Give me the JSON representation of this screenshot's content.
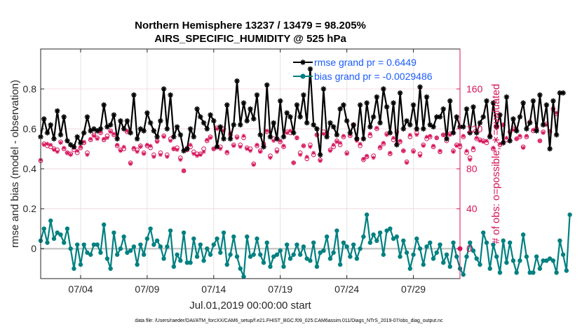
{
  "chart_data": {
    "type": "line",
    "title_line1": "Northern Hemisphere 13237 / 13479 = 98.205%",
    "title_line2": "AIRS_SPECIFIC_HUMIDITY @ 525 hPa",
    "ylabel_left": "rmse and bias (model - observation)",
    "ylabel_right": "# of obs: o=possible; ∗=evaluated",
    "xlabel": "Jul.01,2019 00:00:00 start",
    "footnote": "data file: /Users/raeder/DAI/ATM_forcXX/CAM6_setup/f.e21.FHIST_BGC.f09_025.CAM6assim.011/Diags_NTrS_2019-07/obs_diag_output.nc",
    "xlim": [
      1.0,
      32.5
    ],
    "ylim_left": [
      -0.15,
      1.0
    ],
    "ylim_right": [
      -30,
      200
    ],
    "x_ticks": [
      {
        "value": 4,
        "label": "07/04"
      },
      {
        "value": 9,
        "label": "07/09"
      },
      {
        "value": 14,
        "label": "07/14"
      },
      {
        "value": 19,
        "label": "07/19"
      },
      {
        "value": 24,
        "label": "07/24"
      },
      {
        "value": 29,
        "label": "07/29"
      }
    ],
    "y_ticks_left": [
      {
        "value": 0,
        "label": "0"
      },
      {
        "value": 0.2,
        "label": "0.2"
      },
      {
        "value": 0.4,
        "label": "0.4"
      },
      {
        "value": 0.6,
        "label": "0.6"
      },
      {
        "value": 0.8,
        "label": "0.8"
      }
    ],
    "y_ticks_right": [
      {
        "value": 0,
        "label": "0"
      },
      {
        "value": 40,
        "label": "40"
      },
      {
        "value": 80,
        "label": "80"
      },
      {
        "value": 120,
        "label": "120"
      },
      {
        "value": 160,
        "label": "160"
      }
    ],
    "grid": true,
    "legend_position": "top-right",
    "series": [
      {
        "name": "rmse grand pr = 0.6449",
        "color": "#000000",
        "marker": "asterisk",
        "x_start": 1.0,
        "x_step": 0.25,
        "values": [
          0.56,
          0.65,
          0.58,
          0.62,
          0.55,
          0.69,
          0.57,
          0.66,
          0.54,
          0.52,
          0.51,
          0.56,
          0.53,
          0.58,
          0.66,
          0.59,
          0.6,
          0.59,
          0.6,
          0.72,
          0.61,
          0.62,
          0.67,
          0.55,
          0.64,
          0.6,
          0.64,
          0.58,
          0.77,
          0.55,
          0.6,
          0.59,
          0.68,
          0.63,
          0.59,
          0.56,
          0.64,
          0.8,
          0.6,
          0.77,
          0.56,
          0.61,
          0.57,
          0.49,
          0.5,
          0.6,
          0.56,
          0.7,
          0.66,
          0.63,
          0.6,
          0.67,
          0.64,
          0.51,
          0.61,
          0.55,
          0.72,
          0.55,
          0.62,
          0.84,
          0.62,
          0.73,
          0.64,
          0.7,
          0.65,
          0.77,
          0.57,
          0.51,
          0.82,
          0.56,
          0.63,
          0.55,
          0.74,
          0.56,
          0.68,
          0.66,
          0.58,
          0.72,
          0.66,
          0.77,
          0.63,
          0.9,
          0.62,
          0.6,
          0.47,
          0.8,
          0.56,
          0.63,
          0.61,
          0.57,
          0.7,
          0.72,
          0.64,
          0.58,
          0.62,
          0.55,
          0.72,
          0.55,
          0.73,
          0.61,
          0.66,
          0.76,
          0.63,
          0.8,
          0.71,
          0.58,
          0.73,
          0.52,
          0.78,
          0.6,
          0.64,
          0.62,
          0.72,
          0.6,
          0.81,
          0.6,
          0.76,
          0.62,
          0.61,
          0.66,
          0.66,
          0.7,
          0.55,
          0.74,
          0.58,
          0.66,
          0.61,
          0.61,
          0.7,
          0.58,
          0.71,
          0.58,
          0.63,
          0.66,
          0.74,
          0.56,
          0.73,
          0.61,
          0.67,
          0.53,
          0.76,
          0.54,
          0.65,
          0.59,
          0.66,
          0.73,
          0.6,
          0.63,
          0.74,
          0.59,
          0.77,
          0.62,
          0.72,
          0.5,
          0.74,
          0.57,
          0.78,
          0.78
        ]
      },
      {
        "name": "bias grand pr = -0.0029486",
        "color": "#008080",
        "marker": "dot",
        "x_start": 1.0,
        "x_step": 0.25,
        "values": [
          0.04,
          0.1,
          0.03,
          0.14,
          0.05,
          0.08,
          0.07,
          0.03,
          0.1,
          0.0,
          -0.1,
          0.02,
          -0.08,
          0.02,
          -0.02,
          -0.03,
          0.02,
          0.02,
          -0.02,
          0.12,
          -0.05,
          -0.1,
          0.08,
          -0.03,
          0.0,
          0.06,
          -0.02,
          -0.01,
          0.01,
          -0.08,
          0.02,
          -0.03,
          0.05,
          0.1,
          0.02,
          0.04,
          0.01,
          -0.05,
          0.01,
          0.09,
          -0.09,
          -0.03,
          -0.06,
          0.08,
          -0.07,
          -0.07,
          0.05,
          -0.04,
          0.02,
          -0.06,
          0.0,
          -0.03,
          0.02,
          0.05,
          -0.02,
          0.08,
          -0.08,
          -0.03,
          0.06,
          -0.04,
          -0.1,
          -0.14,
          0.06,
          -0.04,
          -0.03,
          0.05,
          -0.03,
          -0.07,
          0.03,
          -0.09,
          -0.04,
          -0.03,
          -0.01,
          -0.09,
          0.02,
          -0.05,
          -0.03,
          0.02,
          -0.03,
          0.01,
          -0.05,
          -0.06,
          0.03,
          -0.09,
          -0.02,
          -0.01,
          0.06,
          -0.05,
          -0.02,
          0.09,
          -0.08,
          0.03,
          0.01,
          -0.04,
          0.02,
          -0.05,
          0.0,
          0.06,
          0.17,
          0.03,
          0.07,
          0.04,
          0.08,
          -0.03,
          0.09,
          0.1,
          0.05,
          0.06,
          -0.04,
          0.04,
          -0.02,
          -0.1,
          -0.03,
          0.05,
          0.0,
          -0.08,
          0.01,
          0.03,
          -0.05,
          -0.02,
          0.02,
          -0.07,
          -0.03,
          -0.09,
          0.03,
          -0.04,
          -0.1,
          -0.13,
          -0.04,
          0.03,
          -0.01,
          -0.05,
          -0.08,
          0.08,
          0.03,
          -0.1,
          0.02,
          -0.04,
          -0.12,
          0.04,
          -0.07,
          0.03,
          -0.06,
          -0.12,
          -0.06,
          0.07,
          -0.04,
          -0.12,
          -0.12,
          -0.04,
          -0.1,
          -0.06,
          -0.06,
          -0.05,
          -0.06,
          -0.12,
          0.04,
          -0.03,
          -0.11,
          0.17
        ]
      }
    ],
    "obs_series": [
      {
        "name": "possible",
        "color": "#d6135a",
        "marker": "circle",
        "x_start": 1.0,
        "x_step": 0.25,
        "values": [
          88,
          105,
          103,
          102,
          100,
          99,
          107,
          100,
          96,
          95,
          99,
          96,
          101,
          106,
          96,
          109,
          114,
          111,
          116,
          109,
          113,
          118,
          114,
          103,
          99,
          100,
          117,
          86,
          100,
          99,
          103,
          96,
          103,
          101,
          94,
          108,
          96,
          113,
          94,
          110,
          100,
          101,
          91,
          78,
          99,
          102,
          97,
          95,
          95,
          100,
          108,
          112,
          100,
          121,
          102,
          120,
          96,
          114,
          104,
          112,
          104,
          111,
          101,
          100,
          85,
          103,
          98,
          105,
          117,
          93,
          110,
          99,
          107,
          102,
          117,
          116,
          86,
          111,
          96,
          103,
          90,
          104,
          94,
          114,
          89,
          117,
          115,
          99,
          102,
          108,
          104,
          112,
          96,
          113,
          124,
          110,
          103,
          89,
          92,
          113,
          93,
          120,
          101,
          105,
          115,
          95,
          109,
          117,
          107,
          98,
          87,
          112,
          98,
          116,
          95,
          104,
          110,
          112,
          102,
          111,
          97,
          114,
          108,
          115,
          98,
          104,
          102,
          112,
          96,
          91,
          99,
          110,
          109,
          108,
          106,
          113,
          100,
          122,
          104,
          124,
          109,
          117,
          120,
          110,
          112,
          102,
          112,
          127,
          118,
          120,
          108,
          117,
          125,
          117,
          140,
          135
        ]
      },
      {
        "name": "evaluated",
        "color": "#d6135a",
        "marker": "asterisk",
        "x_start": 1.0,
        "x_step": 0.25,
        "values": [
          89,
          104,
          105,
          104,
          99,
          97,
          106,
          101,
          96,
          94,
          101,
          98,
          102,
          107,
          94,
          110,
          113,
          110,
          117,
          110,
          111,
          117,
          115,
          104,
          98,
          102,
          118,
          85,
          101,
          97,
          102,
          95,
          104,
          103,
          92,
          107,
          94,
          112,
          92,
          108,
          100,
          99,
          89,
          78,
          101,
          104,
          95,
          93,
          94,
          97,
          109,
          111,
          100,
          120,
          100,
          118,
          97,
          116,
          103,
          111,
          102,
          113,
          100,
          98,
          84,
          104,
          97,
          104,
          118,
          91,
          108,
          97,
          108,
          103,
          116,
          118,
          86,
          111,
          94,
          103,
          92,
          102,
          96,
          114,
          88,
          115,
          116,
          98,
          104,
          107,
          106,
          113,
          95,
          114,
          123,
          108,
          105,
          90,
          93,
          115,
          91,
          121,
          102,
          106,
          114,
          96,
          111,
          115,
          108,
          98,
          86,
          114,
          97,
          114,
          93,
          103,
          112,
          113,
          103,
          111,
          98,
          114,
          110,
          114,
          97,
          103,
          104,
          113,
          98,
          89,
          101,
          111,
          108,
          107,
          108,
          114,
          101,
          121,
          105,
          124,
          111,
          116,
          119,
          110,
          113,
          101,
          113,
          126,
          119,
          121,
          108,
          116,
          124,
          118,
          139,
          136
        ]
      }
    ]
  }
}
